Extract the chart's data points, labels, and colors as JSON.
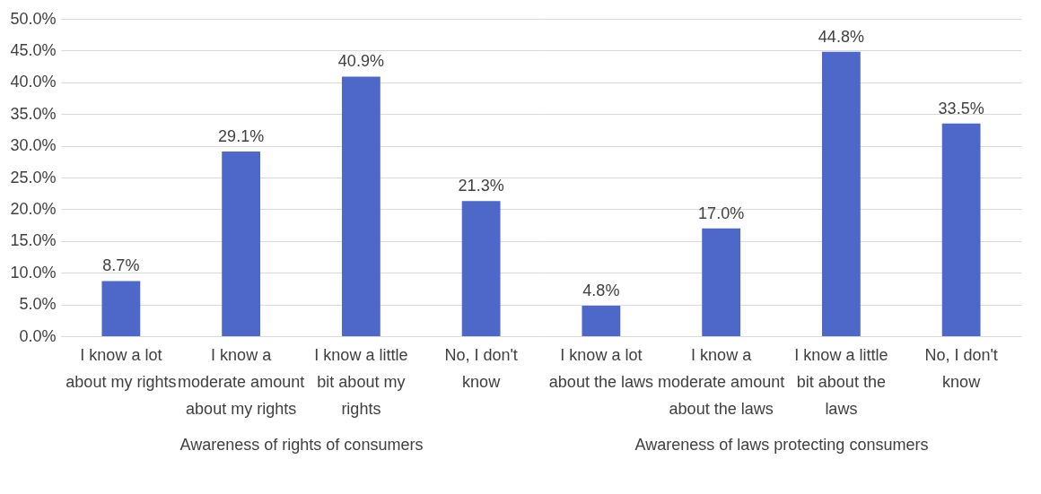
{
  "chart_data": [
    {
      "type": "bar",
      "xlabel": "Awareness of rights of consumers",
      "categories": [
        "I know a lot about my rights",
        "I know a moderate amount about my rights",
        "I know a little bit about my rights",
        "No, I don't know"
      ],
      "values": [
        8.7,
        29.1,
        40.9,
        21.3
      ],
      "value_labels": [
        "8.7%",
        "29.1%",
        "40.9%",
        "21.3%"
      ],
      "color": "#4e68c9",
      "ylim": [
        0,
        50
      ],
      "yticks": [
        {
          "value": 0,
          "label": "0.0%"
        },
        {
          "value": 5,
          "label": "5.0%"
        },
        {
          "value": 10,
          "label": "10.0%"
        },
        {
          "value": 15,
          "label": "15.0%"
        },
        {
          "value": 20,
          "label": "20.0%"
        },
        {
          "value": 25,
          "label": "25.0%"
        },
        {
          "value": 30,
          "label": "30.0%"
        },
        {
          "value": 35,
          "label": "35.0%"
        },
        {
          "value": 40,
          "label": "40.0%"
        },
        {
          "value": 45,
          "label": "45.0%"
        },
        {
          "value": 50,
          "label": "50.0%"
        }
      ],
      "grid": "y"
    },
    {
      "type": "bar",
      "xlabel": "Awareness of laws protecting consumers",
      "categories": [
        "I know a lot about the laws",
        "I know a moderate amount about the laws",
        "I know a little bit about the laws",
        "No, I don't know"
      ],
      "values": [
        4.8,
        17.0,
        44.8,
        33.5
      ],
      "value_labels": [
        "4.8%",
        "17.0%",
        "44.8%",
        "33.5%"
      ],
      "color": "#4e68c9",
      "ylim": [
        0,
        50
      ],
      "yticks": [
        0,
        5,
        10,
        15,
        20,
        25,
        30,
        35,
        40,
        45,
        50
      ],
      "grid": "y",
      "tick_labels": "x"
    }
  ]
}
